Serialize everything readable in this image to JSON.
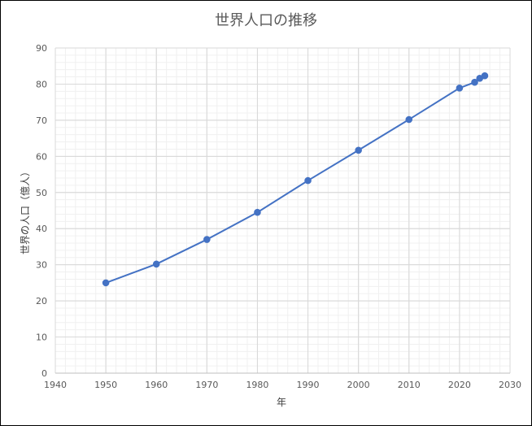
{
  "chart_data": {
    "type": "line",
    "title": "世界人口の推移",
    "xlabel": "年",
    "ylabel": "世界の人口（億人）",
    "xlim": [
      1940,
      2030
    ],
    "ylim": [
      0,
      90
    ],
    "x_ticks": [
      1940,
      1950,
      1960,
      1970,
      1980,
      1990,
      2000,
      2010,
      2020,
      2030
    ],
    "y_ticks": [
      0,
      10,
      20,
      30,
      40,
      50,
      60,
      70,
      80,
      90
    ],
    "grid": true,
    "series": [
      {
        "x": [
          1950,
          1960,
          1970,
          1980,
          1990,
          2000,
          2010,
          2020,
          2023,
          2024,
          2025
        ],
        "y": [
          25.0,
          30.2,
          37.0,
          44.5,
          53.3,
          61.7,
          70.2,
          78.9,
          80.5,
          81.6,
          82.3
        ]
      }
    ],
    "color": "#4472C4"
  }
}
